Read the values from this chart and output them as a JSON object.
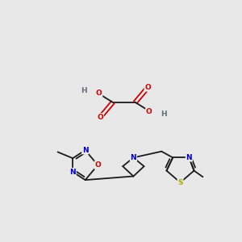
{
  "bg_color": "#e8e8e8",
  "bond_color": "#1a1a1a",
  "atom_colors": {
    "O": "#cc0000",
    "N": "#0000cc",
    "S": "#aaaa00",
    "H": "#607070",
    "C": "#1a1a1a"
  },
  "font_size": 6.5,
  "bond_lw": 1.3
}
